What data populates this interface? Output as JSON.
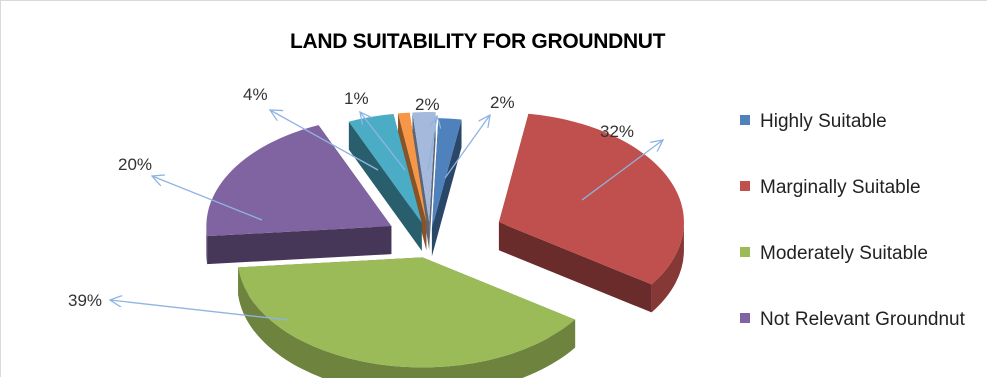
{
  "chart_data": {
    "type": "pie",
    "title": "LAND SUITABILITY  FOR GROUNDNUT",
    "style": "3d-exploded",
    "slices": [
      {
        "label": "Highly Suitable",
        "value": 2,
        "label_text": "2%",
        "color": "#4f81bd"
      },
      {
        "label": "Marginally Suitable",
        "value": 32,
        "label_text": "32%",
        "color": "#c0504d"
      },
      {
        "label": "Moderately Suitable",
        "value": 39,
        "label_text": "39%",
        "color": "#9bbb59"
      },
      {
        "label": "Not Relevant Groundnut",
        "value": 20,
        "label_text": "20%",
        "color": "#8064a2"
      },
      {
        "label": "",
        "value": 4,
        "label_text": "4%",
        "color": "#4bacc6"
      },
      {
        "label": "",
        "value": 1,
        "label_text": "1%",
        "color": "#f79646"
      },
      {
        "label": "",
        "value": 2,
        "label_text": "2%",
        "color": "#a5b9dc"
      }
    ],
    "legend_position": "right",
    "leader_line_color": "#8eb4e3"
  }
}
